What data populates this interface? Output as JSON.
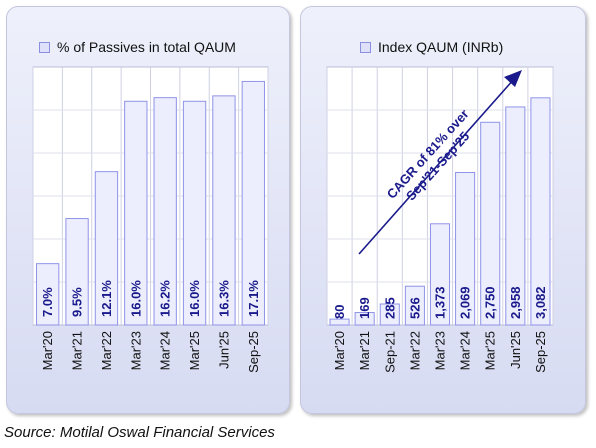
{
  "charts": {
    "left": {
      "legend": "% of Passives in total QAUM",
      "colors": {
        "bar_fill": "#eceefd",
        "bar_stroke": "#8f93e8",
        "label": "#1a1a8c"
      }
    },
    "right": {
      "legend": "Index QAUM (INRb)",
      "annotation": [
        "CAGR of 81% over",
        "Sep'21-Sep'25"
      ],
      "colors": {
        "bar_fill": "#eceefd",
        "bar_stroke": "#8f93e8",
        "label": "#1a1a8c",
        "arrow": "#1a1a8c"
      }
    }
  },
  "chart_data": [
    {
      "type": "bar",
      "categories": [
        "Mar'20",
        "Mar'21",
        "Mar'22",
        "Mar'23",
        "Mar'24",
        "Mar'25",
        "Jun'25",
        "Sep-25"
      ],
      "series": [
        {
          "name": "% of Passives in total QAUM",
          "values": [
            7.0,
            9.5,
            12.1,
            16.0,
            16.2,
            16.0,
            16.3,
            17.1
          ]
        }
      ],
      "data_labels": [
        "7.0%",
        "9.5%",
        "12.1%",
        "16.0%",
        "16.2%",
        "16.0%",
        "16.3%",
        "17.1%"
      ],
      "ylim": [
        3.6,
        17.9
      ],
      "grid": true,
      "legend": "top"
    },
    {
      "type": "bar",
      "categories": [
        "Mar'20",
        "Mar'21",
        "Sep-21",
        "Mar'22",
        "Mar'23",
        "Mar'24",
        "Mar'25",
        "Jun'25",
        "Sep-25"
      ],
      "series": [
        {
          "name": "Index QAUM (INRb)",
          "values": [
            80,
            169,
            285,
            526,
            1373,
            2069,
            2750,
            2958,
            3082
          ]
        }
      ],
      "data_labels": [
        "80",
        "169",
        "285",
        "526",
        "1,373",
        "2,069",
        "2,750",
        "2,958",
        "3,082"
      ],
      "ylim": [
        0,
        3500
      ],
      "grid": true,
      "legend": "top",
      "annotation": "CAGR of 81% over Sep'21-Sep'25"
    }
  ],
  "source": "Source: Motilal Oswal Financial Services"
}
